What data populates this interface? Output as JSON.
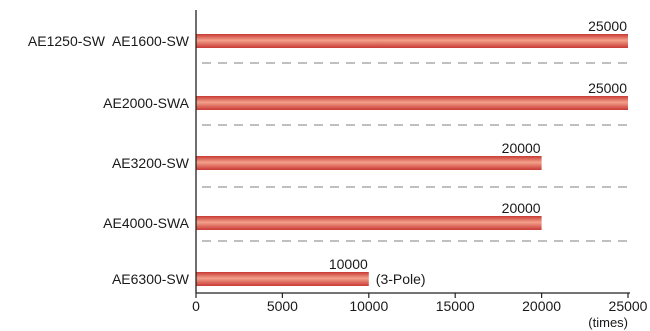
{
  "chart_data": {
    "type": "bar",
    "orientation": "horizontal",
    "categories": [
      "AE1250-SW  AE1600-SW",
      "AE2000-SWA",
      "AE3200-SW",
      "AE4000-SWA",
      "AE6300-SW"
    ],
    "values": [
      25000,
      25000,
      20000,
      20000,
      10000
    ],
    "data_labels": [
      "25000",
      "25000",
      "20000",
      "20000",
      "10000"
    ],
    "annotations": [
      {
        "category_index": 4,
        "text": "(3-Pole)"
      }
    ],
    "xlim": [
      0,
      25000
    ],
    "xticks": [
      0,
      5000,
      10000,
      15000,
      20000,
      25000
    ],
    "xtick_labels": [
      "0",
      "5000",
      "10000",
      "15000",
      "20000",
      "25000"
    ],
    "xlabel": "(times)",
    "ylabel": "",
    "title": "",
    "grid": false,
    "separators": "dashed",
    "bar_color": "#c83a34",
    "bar_highlight": "#f4a08a",
    "axis_color": "#222222",
    "separator_color": "#999999"
  }
}
